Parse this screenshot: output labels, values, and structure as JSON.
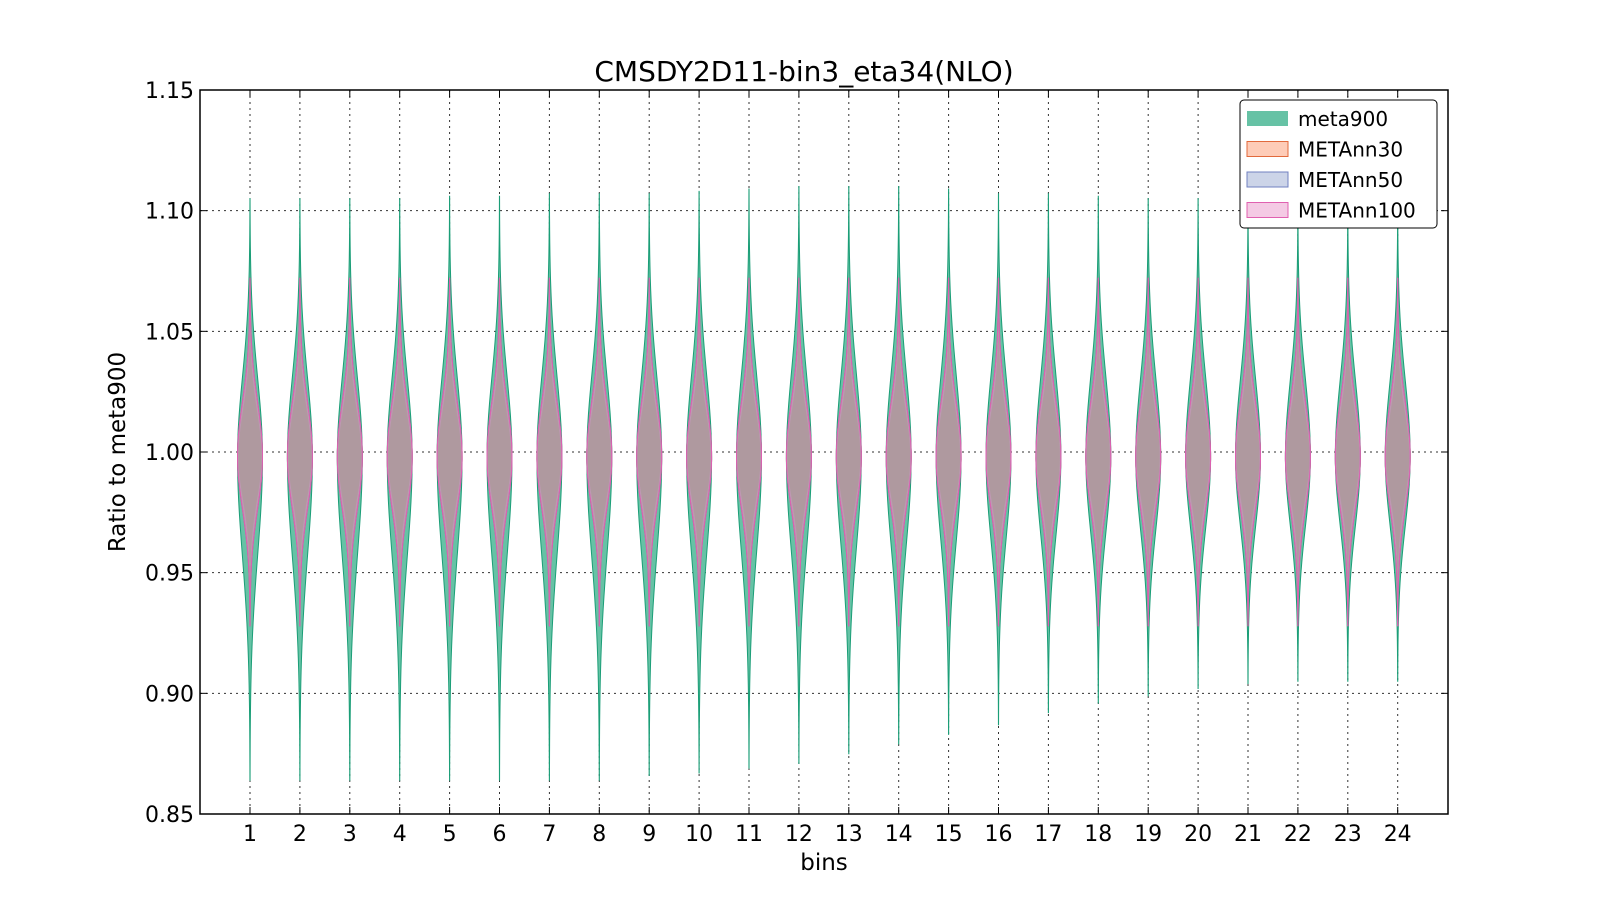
{
  "chart_data": {
    "type": "violin",
    "title": "CMSDY2D11-bin3_eta34(NLO)",
    "xlabel": "bins",
    "ylabel": "Ratio to meta900",
    "ylim": [
      0.85,
      1.15
    ],
    "yticks": [
      "0.85",
      "0.90",
      "0.95",
      "1.00",
      "1.05",
      "1.10",
      "1.15"
    ],
    "categories": [
      "1",
      "2",
      "3",
      "4",
      "5",
      "6",
      "7",
      "8",
      "9",
      "10",
      "11",
      "12",
      "13",
      "14",
      "15",
      "16",
      "17",
      "18",
      "19",
      "20",
      "21",
      "22",
      "23",
      "24"
    ],
    "grid": true,
    "legend_position": "top-right",
    "series": [
      {
        "name": "meta900",
        "fill": "#66c2a5",
        "edge": "#1b9e77",
        "min": [
          0.864,
          0.864,
          0.864,
          0.864,
          0.864,
          0.864,
          0.864,
          0.864,
          0.866,
          0.867,
          0.869,
          0.871,
          0.875,
          0.879,
          0.883,
          0.887,
          0.892,
          0.896,
          0.899,
          0.902,
          0.904,
          0.905,
          0.905,
          0.905
        ],
        "max": [
          1.105,
          1.105,
          1.105,
          1.105,
          1.106,
          1.106,
          1.107,
          1.107,
          1.107,
          1.108,
          1.109,
          1.11,
          1.11,
          1.11,
          1.109,
          1.107,
          1.107,
          1.106,
          1.105,
          1.105,
          1.103,
          1.102,
          1.102,
          1.101
        ]
      },
      {
        "name": "METAnn30",
        "fill": "#fc8d62",
        "edge": "#e26a3d",
        "min": 0.928,
        "max": 1.072
      },
      {
        "name": "METAnn50",
        "fill": "#8da0cb",
        "edge": "#7080c0",
        "min": 0.928,
        "max": 1.072
      },
      {
        "name": "METAnn100",
        "fill": "#e78ac3",
        "edge": "#e060b0",
        "min": 0.928,
        "max": 1.072
      }
    ],
    "colors": {
      "body": "#a39a90"
    }
  }
}
